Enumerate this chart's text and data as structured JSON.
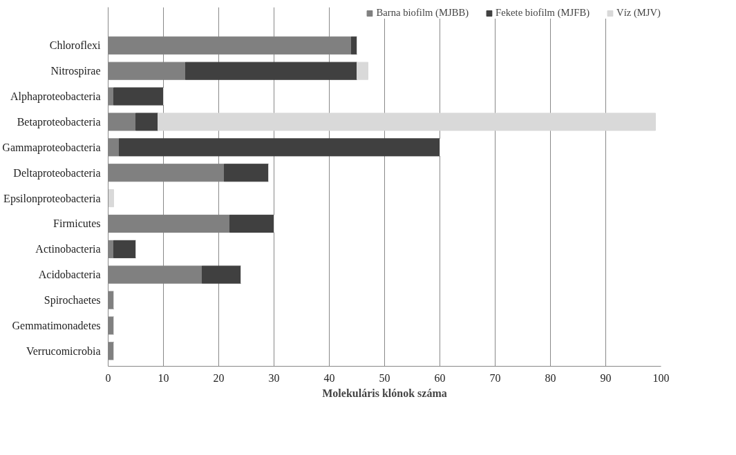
{
  "chart_data": {
    "type": "bar",
    "orientation": "horizontal",
    "stacked": true,
    "xlabel": "Molekuláris klónok száma",
    "categories": [
      "Chloroflexi",
      "Nitrospirae",
      "Alphaproteobacteria",
      "Betaproteobacteria",
      "Gammaproteobacteria",
      "Deltaproteobacteria",
      "Epsilonproteobacteria",
      "Firmicutes",
      "Actinobacteria",
      "Acidobacteria",
      "Spirochaetes",
      "Gemmatimonadetes",
      "Verrucomicrobia"
    ],
    "series": [
      {
        "name": "Barna biofilm (MJBB)",
        "color": "#808080",
        "values": [
          44,
          14,
          1,
          5,
          2,
          21,
          0,
          22,
          1,
          17,
          1,
          1,
          1
        ]
      },
      {
        "name": "Fekete biofilm (MJFB)",
        "color": "#404040",
        "values": [
          1,
          31,
          9,
          4,
          58,
          8,
          0,
          8,
          4,
          7,
          0,
          0,
          0
        ]
      },
      {
        "name": "Víz (MJV)",
        "color": "#d9d9d9",
        "values": [
          0,
          2,
          0,
          90,
          0,
          0,
          1,
          0,
          0,
          0,
          0,
          0,
          0
        ]
      }
    ],
    "xlim": [
      0,
      100
    ],
    "xticks": [
      0,
      10,
      20,
      30,
      40,
      50,
      60,
      70,
      80,
      90,
      100
    ],
    "grid": "x",
    "legend": "top"
  }
}
